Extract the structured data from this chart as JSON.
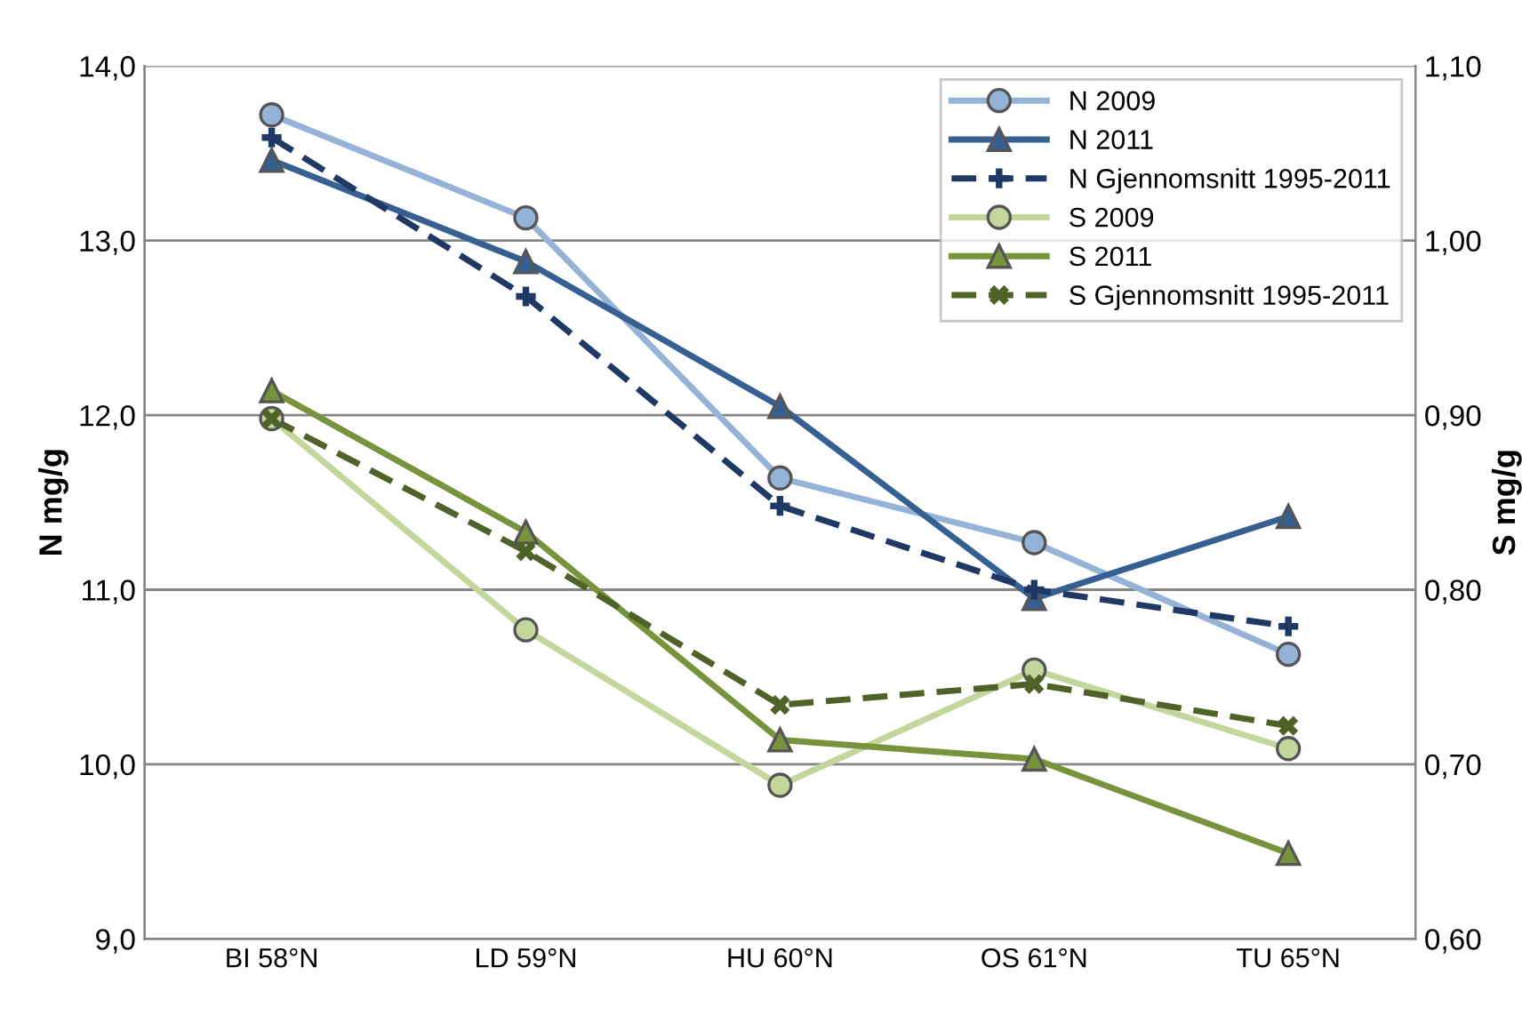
{
  "chart_data": {
    "type": "line",
    "ylabel": "N mg/g",
    "y2label": "S mg/g",
    "categories": [
      "BI 58°N",
      "LD 59°N",
      "HU 60°N",
      "OS 61°N",
      "TU 65°N"
    ],
    "series": [
      {
        "name": "N 2009",
        "color": "#95b3d7",
        "marker": "circle",
        "line_style": "solid",
        "values": [
          13.72,
          13.13,
          11.64,
          11.27,
          10.63
        ]
      },
      {
        "name": "N 2011",
        "color": "#366092",
        "marker": "triangle",
        "line_style": "solid",
        "values": [
          13.46,
          12.88,
          12.05,
          10.95,
          11.42
        ]
      },
      {
        "name": "N Gjennomsnitt 1995-2011",
        "color": "#1f3864",
        "marker": "cross",
        "line_style": "dashed",
        "values": [
          13.59,
          12.68,
          11.48,
          11.0,
          10.79
        ]
      },
      {
        "name": "S 2009",
        "color": "#c3d69b",
        "marker": "circle",
        "line_style": "solid",
        "axis": "y2",
        "values": [
          0.898,
          0.777,
          0.688,
          0.754,
          0.709
        ]
      },
      {
        "name": "S 2011",
        "color": "#77933c",
        "marker": "triangle",
        "line_style": "solid",
        "axis": "y2",
        "values": [
          0.914,
          0.833,
          0.714,
          0.703,
          0.649
        ]
      },
      {
        "name": "S Gjennomsnitt 1995-2011",
        "color": "#4f6228",
        "marker": "cross",
        "line_style": "dashed",
        "axis": "y2",
        "values": [
          0.898,
          0.822,
          0.734,
          0.746,
          0.722
        ]
      }
    ],
    "ylim": [
      9,
      14
    ],
    "yticks": [
      {
        "value": 9,
        "label": "9,0"
      },
      {
        "value": 10,
        "label": "10,0"
      },
      {
        "value": 11,
        "label": "11,0"
      },
      {
        "value": 12,
        "label": "12,0"
      },
      {
        "value": 13,
        "label": "13,0"
      },
      {
        "value": 14,
        "label": "14,0"
      }
    ],
    "y2lim": [
      0.6,
      1.1
    ],
    "y2ticks": [
      {
        "value": 0.6,
        "label": "0,60"
      },
      {
        "value": 0.7,
        "label": "0,70"
      },
      {
        "value": 0.8,
        "label": "0,80"
      },
      {
        "value": 0.9,
        "label": "0,90"
      },
      {
        "value": 1.0,
        "label": "1,00"
      },
      {
        "value": 1.1,
        "label": "1,10"
      }
    ],
    "grid": "y",
    "legend": "top right"
  }
}
